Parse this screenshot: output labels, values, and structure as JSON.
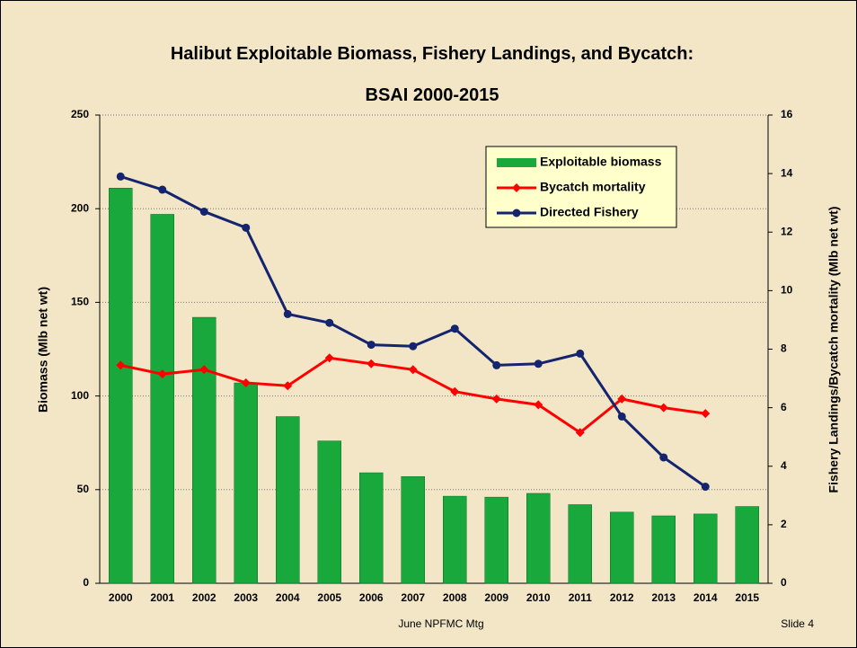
{
  "chart_data": {
    "type": "bar",
    "title": "Halibut Exploitable Biomass, Fishery Landings, and Bycatch:",
    "subtitle": "BSAI 2000-2015",
    "y_label": "Biomass (Mlb net wt)",
    "y2_label": "Fishery Landings/Bycatch mortality (Mlb net wt)",
    "categories": [
      "2000",
      "2001",
      "2002",
      "2003",
      "2004",
      "2005",
      "2006",
      "2007",
      "2008",
      "2009",
      "2010",
      "2011",
      "2012",
      "2013",
      "2014",
      "2015"
    ],
    "series": [
      {
        "name": "Exploitable biomass",
        "type": "bar",
        "color": "#18a83c",
        "values": [
          211,
          197,
          142,
          107,
          89,
          76,
          59,
          57,
          46.5,
          46,
          48,
          42,
          38,
          36,
          37,
          41
        ]
      },
      {
        "name": "Bycatch mortality",
        "type": "line",
        "axis": "y2",
        "color": "#ff0000",
        "marker": "diamond",
        "values": [
          7.45,
          7.15,
          7.3,
          6.85,
          6.75,
          7.7,
          7.5,
          7.3,
          6.55,
          6.3,
          6.1,
          5.15,
          6.3,
          6.0,
          5.8,
          null
        ]
      },
      {
        "name": "Directed Fishery",
        "type": "line",
        "axis": "y2",
        "color": "#14246e",
        "marker": "circle",
        "values": [
          13.9,
          13.45,
          12.7,
          12.15,
          9.2,
          8.9,
          8.15,
          8.1,
          8.7,
          7.45,
          7.5,
          7.85,
          5.7,
          4.3,
          3.3,
          null
        ]
      }
    ],
    "ylim": [
      0,
      250
    ],
    "yticks": [
      0,
      50,
      100,
      150,
      200,
      250
    ],
    "y2lim": [
      0,
      16
    ],
    "y2ticks": [
      0,
      2,
      4,
      6,
      8,
      10,
      12,
      14,
      16
    ],
    "grid": true
  },
  "footer": {
    "center": "June NPFMC Mtg",
    "right": "Slide 4"
  }
}
